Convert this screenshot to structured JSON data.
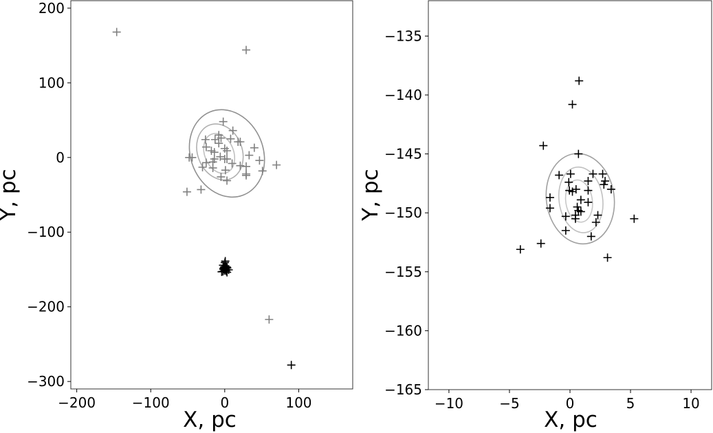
{
  "chart_data": [
    {
      "type": "scatter",
      "xlabel": "X, pc",
      "ylabel": "Y, pc",
      "xlim": [
        -208,
        173
      ],
      "ylim": [
        -310,
        210
      ],
      "xticks": [
        -200,
        -100,
        0,
        100
      ],
      "yticks": [
        200,
        100,
        0,
        -100,
        -200,
        -300
      ],
      "grid": false,
      "series": [
        {
          "color": "#808080",
          "marker": "plus",
          "points": [
            [
              -2,
              48
            ],
            [
              11,
              36
            ],
            [
              -8,
              30
            ],
            [
              -26,
              24
            ],
            [
              -13,
              24
            ],
            [
              -5,
              26
            ],
            [
              8,
              25
            ],
            [
              18,
              21
            ],
            [
              21,
              21
            ],
            [
              -8,
              19
            ],
            [
              -25,
              14
            ],
            [
              40,
              13
            ],
            [
              -18,
              9
            ],
            [
              0,
              12
            ],
            [
              3,
              9
            ],
            [
              -14,
              7
            ],
            [
              33,
              3
            ],
            [
              -6,
              1
            ],
            [
              0,
              -2
            ],
            [
              3,
              -2
            ],
            [
              -14,
              -2
            ],
            [
              -48,
              0
            ],
            [
              -44,
              0
            ],
            [
              47,
              -4
            ],
            [
              -25,
              -7
            ],
            [
              -16,
              -6
            ],
            [
              10,
              -8
            ],
            [
              21,
              -11
            ],
            [
              29,
              -12
            ],
            [
              -30,
              -13
            ],
            [
              51,
              -18
            ],
            [
              1,
              -17
            ],
            [
              -16,
              -14
            ],
            [
              29,
              -22
            ],
            [
              29,
              -24
            ],
            [
              -5,
              -26
            ],
            [
              3,
              -31
            ],
            [
              70,
              -10
            ],
            [
              -51,
              -46
            ],
            [
              -32,
              -43
            ],
            [
              -146,
              168
            ],
            [
              29,
              144
            ],
            [
              60,
              -217
            ]
          ]
        },
        {
          "color": "#000000",
          "marker": "plus",
          "points": [
            [
              -2.2,
              -144.3
            ],
            [
              0.7,
              -145
            ],
            [
              -0.9,
              -146.8
            ],
            [
              0,
              -146.7
            ],
            [
              -0.1,
              -147.4
            ],
            [
              0,
              -148.1
            ],
            [
              0.5,
              -148
            ],
            [
              0.2,
              -148.2
            ],
            [
              1.9,
              -146.7
            ],
            [
              2.7,
              -146.7
            ],
            [
              2.9,
              -147.3
            ],
            [
              3.4,
              -148
            ],
            [
              1.5,
              -147.3
            ],
            [
              1.5,
              -148.1
            ],
            [
              0.9,
              -148.9
            ],
            [
              0.6,
              -149.5
            ],
            [
              0.45,
              -150.2
            ],
            [
              -1.65,
              -148.7
            ],
            [
              -1.65,
              -149.6
            ],
            [
              2.3,
              -150.2
            ],
            [
              -0.35,
              -151.5
            ],
            [
              1.75,
              -152
            ],
            [
              5.3,
              -150.5
            ],
            [
              -2.4,
              -152.6
            ],
            [
              -4.1,
              -153.1
            ],
            [
              3.1,
              -153.8
            ],
            [
              0.2,
              -140.8
            ],
            [
              0.75,
              -138.8
            ],
            [
              90,
              -278
            ]
          ]
        }
      ],
      "contours": [
        {
          "color": "#909090",
          "center": [
            3,
            5.5
          ],
          "radii": [
            49,
            60
          ]
        },
        {
          "color": "#b0b0b0",
          "center": [
            -6.5,
            7.4
          ],
          "radii": [
            30,
            38.6
          ]
        },
        {
          "color": "#c0c0c0",
          "center": [
            -7.5,
            5.5
          ],
          "radii": [
            19.6,
            27.6
          ]
        }
      ]
    },
    {
      "type": "scatter",
      "xlabel": "X, pc",
      "ylabel": "Y, pc",
      "xlim": [
        -11.7,
        11.7
      ],
      "ylim": [
        -165,
        -132
      ],
      "xticks": [
        -10,
        -5,
        0,
        5,
        10
      ],
      "yticks": [
        -135,
        -140,
        -145,
        -150,
        -155,
        -160,
        -165
      ],
      "grid": false,
      "series": [
        {
          "color": "#000000",
          "marker": "plus",
          "points": [
            [
              -2.2,
              -144.3
            ],
            [
              0.7,
              -145
            ],
            [
              -0.9,
              -146.8
            ],
            [
              0.05,
              -146.7
            ],
            [
              -0.1,
              -147.4
            ],
            [
              -0.05,
              -148.1
            ],
            [
              0.5,
              -148
            ],
            [
              0.2,
              -148.2
            ],
            [
              1.9,
              -146.7
            ],
            [
              2.7,
              -146.7
            ],
            [
              2.9,
              -147.3
            ],
            [
              2.8,
              -147.6
            ],
            [
              3.4,
              -148
            ],
            [
              1.5,
              -147.3
            ],
            [
              1.5,
              -148.1
            ],
            [
              0.9,
              -148.9
            ],
            [
              1.5,
              -149.1
            ],
            [
              0.6,
              -149.5
            ],
            [
              0.7,
              -149.8
            ],
            [
              0.9,
              -149.9
            ],
            [
              0.45,
              -150.2
            ],
            [
              0.45,
              -150.5
            ],
            [
              -1.65,
              -148.7
            ],
            [
              -1.65,
              -149.6
            ],
            [
              -0.35,
              -150.3
            ],
            [
              2.3,
              -150.2
            ],
            [
              2.15,
              -150.8
            ],
            [
              -0.35,
              -151.5
            ],
            [
              1.75,
              -152
            ],
            [
              5.3,
              -150.5
            ],
            [
              -2.4,
              -152.6
            ],
            [
              -4.1,
              -153.1
            ],
            [
              3.1,
              -153.8
            ],
            [
              0.2,
              -140.8
            ],
            [
              0.75,
              -138.8
            ]
          ]
        }
      ],
      "contours": [
        {
          "color": "#a0a0a0",
          "center": [
            0.85,
            -148.8
          ],
          "radii": [
            2.8,
            3.85
          ]
        },
        {
          "color": "#c0c0c0",
          "center": [
            0.9,
            -148.9
          ],
          "radii": [
            1.8,
            2.8
          ]
        },
        {
          "color": "#c8c8c8",
          "center": [
            0.75,
            -149
          ],
          "radii": [
            1.1,
            1.8
          ]
        }
      ]
    }
  ]
}
